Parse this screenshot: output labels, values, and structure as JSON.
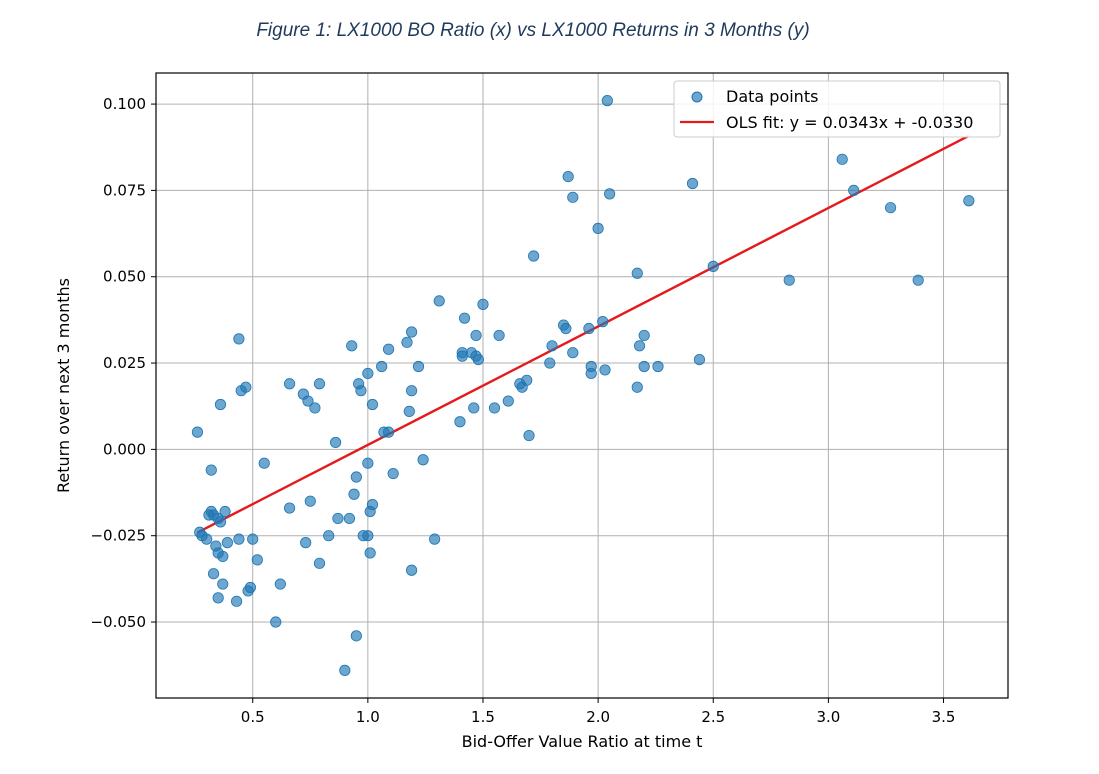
{
  "figure_caption": "Figure 1: LX1000 BO Ratio (x) vs LX1000 Returns in 3 Months (y)",
  "chart_data": {
    "type": "scatter",
    "xlabel": "Bid-Offer Value Ratio at time t",
    "ylabel": "Return over next 3 months",
    "xlim": [
      0.08,
      3.78
    ],
    "ylim": [
      -0.072,
      0.109
    ],
    "x_ticks": [
      0.5,
      1.0,
      1.5,
      2.0,
      2.5,
      3.0,
      3.5
    ],
    "y_ticks": [
      -0.05,
      -0.025,
      0.0,
      0.025,
      0.05,
      0.075,
      0.1
    ],
    "x_tick_labels": [
      "0.5",
      "1.0",
      "1.5",
      "2.0",
      "2.5",
      "3.0",
      "3.5"
    ],
    "y_tick_labels": [
      "−0.050",
      "−0.025",
      "0.000",
      "0.025",
      "0.050",
      "0.075",
      "0.100"
    ],
    "grid": true,
    "legend_position": "top-right",
    "colors": {
      "points": "#1f77b4",
      "fit_line": "#e41a1c",
      "grid": "#b0b0b0"
    },
    "series": [
      {
        "name": "Data points",
        "kind": "scatter",
        "points": [
          [
            0.26,
            0.005
          ],
          [
            0.27,
            -0.024
          ],
          [
            0.28,
            -0.025
          ],
          [
            0.3,
            -0.026
          ],
          [
            0.31,
            -0.019
          ],
          [
            0.32,
            -0.018
          ],
          [
            0.32,
            -0.006
          ],
          [
            0.33,
            -0.019
          ],
          [
            0.33,
            -0.036
          ],
          [
            0.34,
            -0.028
          ],
          [
            0.35,
            -0.02
          ],
          [
            0.35,
            -0.03
          ],
          [
            0.35,
            -0.043
          ],
          [
            0.36,
            0.013
          ],
          [
            0.36,
            -0.021
          ],
          [
            0.37,
            -0.031
          ],
          [
            0.37,
            -0.039
          ],
          [
            0.38,
            -0.018
          ],
          [
            0.39,
            -0.027
          ],
          [
            0.43,
            -0.044
          ],
          [
            0.44,
            0.032
          ],
          [
            0.44,
            -0.026
          ],
          [
            0.45,
            0.017
          ],
          [
            0.47,
            0.018
          ],
          [
            0.48,
            -0.041
          ],
          [
            0.49,
            -0.04
          ],
          [
            0.5,
            -0.026
          ],
          [
            0.52,
            -0.032
          ],
          [
            0.55,
            -0.004
          ],
          [
            0.6,
            -0.05
          ],
          [
            0.62,
            -0.039
          ],
          [
            0.66,
            0.019
          ],
          [
            0.66,
            -0.017
          ],
          [
            0.72,
            0.016
          ],
          [
            0.73,
            -0.027
          ],
          [
            0.74,
            0.014
          ],
          [
            0.75,
            -0.015
          ],
          [
            0.77,
            0.012
          ],
          [
            0.79,
            0.019
          ],
          [
            0.79,
            -0.033
          ],
          [
            0.83,
            -0.025
          ],
          [
            0.86,
            0.002
          ],
          [
            0.87,
            -0.02
          ],
          [
            0.9,
            -0.064
          ],
          [
            0.92,
            -0.02
          ],
          [
            0.93,
            0.03
          ],
          [
            0.94,
            -0.013
          ],
          [
            0.95,
            -0.008
          ],
          [
            0.95,
            -0.054
          ],
          [
            0.96,
            0.019
          ],
          [
            0.97,
            0.017
          ],
          [
            0.98,
            -0.025
          ],
          [
            1.0,
            0.022
          ],
          [
            1.0,
            -0.004
          ],
          [
            1.0,
            -0.025
          ],
          [
            1.01,
            -0.03
          ],
          [
            1.01,
            -0.018
          ],
          [
            1.02,
            0.013
          ],
          [
            1.02,
            -0.016
          ],
          [
            1.06,
            0.024
          ],
          [
            1.07,
            0.005
          ],
          [
            1.09,
            0.005
          ],
          [
            1.09,
            0.029
          ],
          [
            1.11,
            -0.007
          ],
          [
            1.17,
            0.031
          ],
          [
            1.18,
            0.011
          ],
          [
            1.19,
            0.034
          ],
          [
            1.19,
            0.017
          ],
          [
            1.19,
            -0.035
          ],
          [
            1.22,
            0.024
          ],
          [
            1.24,
            -0.003
          ],
          [
            1.29,
            -0.026
          ],
          [
            1.31,
            0.043
          ],
          [
            1.4,
            0.008
          ],
          [
            1.41,
            0.027
          ],
          [
            1.41,
            0.028
          ],
          [
            1.42,
            0.038
          ],
          [
            1.45,
            0.028
          ],
          [
            1.46,
            0.012
          ],
          [
            1.47,
            0.033
          ],
          [
            1.47,
            0.027
          ],
          [
            1.48,
            0.026
          ],
          [
            1.5,
            0.042
          ],
          [
            1.55,
            0.012
          ],
          [
            1.57,
            0.033
          ],
          [
            1.61,
            0.014
          ],
          [
            1.66,
            0.019
          ],
          [
            1.67,
            0.018
          ],
          [
            1.69,
            0.02
          ],
          [
            1.7,
            0.004
          ],
          [
            1.72,
            0.056
          ],
          [
            1.79,
            0.025
          ],
          [
            1.8,
            0.03
          ],
          [
            1.85,
            0.036
          ],
          [
            1.86,
            0.035
          ],
          [
            1.87,
            0.079
          ],
          [
            1.89,
            0.073
          ],
          [
            1.89,
            0.028
          ],
          [
            1.96,
            0.035
          ],
          [
            1.97,
            0.024
          ],
          [
            1.97,
            0.022
          ],
          [
            2.0,
            0.064
          ],
          [
            2.02,
            0.037
          ],
          [
            2.03,
            0.023
          ],
          [
            2.04,
            0.101
          ],
          [
            2.05,
            0.074
          ],
          [
            2.17,
            0.051
          ],
          [
            2.17,
            0.018
          ],
          [
            2.18,
            0.03
          ],
          [
            2.2,
            0.033
          ],
          [
            2.2,
            0.024
          ],
          [
            2.26,
            0.024
          ],
          [
            2.41,
            0.077
          ],
          [
            2.44,
            0.026
          ],
          [
            2.5,
            0.053
          ],
          [
            2.83,
            0.049
          ],
          [
            3.06,
            0.084
          ],
          [
            3.11,
            0.075
          ],
          [
            3.27,
            0.07
          ],
          [
            3.39,
            0.049
          ],
          [
            3.61,
            0.072
          ]
        ]
      },
      {
        "name": "OLS fit: y = 0.0343x + -0.0330",
        "kind": "line",
        "slope": 0.0343,
        "intercept": -0.033,
        "x_range": [
          0.26,
          3.61
        ]
      }
    ]
  }
}
